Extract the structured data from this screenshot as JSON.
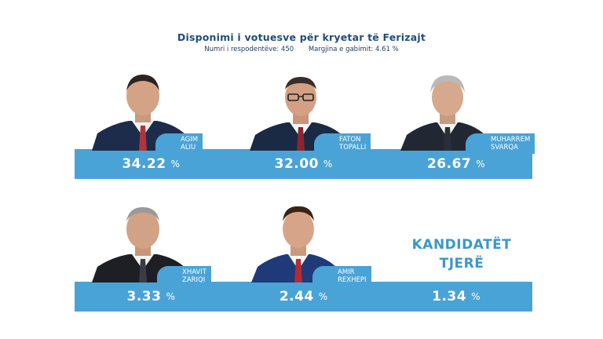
{
  "header": {
    "title": "Disponimi i votuesve për kryetar të Ferizajt",
    "respondents": "Numri i respodentëve: 450",
    "margin": "Margjina e gabimit: 4.61 %"
  },
  "candidates": [
    {
      "first": "AGIM",
      "last": "ALIU",
      "pct": "34.22",
      "sign": "%"
    },
    {
      "first": "FATON",
      "last": "TOPALLI",
      "pct": "32.00",
      "sign": "%"
    },
    {
      "first": "MUHARREM",
      "last": "SVARQA",
      "pct": "26.67",
      "sign": "%"
    },
    {
      "first": "XHAVIT",
      "last": "ZARIQI",
      "pct": "3.33",
      "sign": "%"
    },
    {
      "first": "AMIR",
      "last": "REXHEPI",
      "pct": "2.44",
      "sign": "%"
    }
  ],
  "others": {
    "line1": "KANDIDATËT",
    "line2": "TJERË",
    "pct": "1.34",
    "sign": "%"
  },
  "colors": {
    "accent": "#4aa3d6",
    "title": "#1f4e79"
  },
  "chart_data": {
    "type": "table",
    "title": "Disponimi i votuesve për kryetar të Ferizajt",
    "categories": [
      "AGIM ALIU",
      "FATON TOPALLI",
      "MUHARREM SVARQA",
      "XHAVIT ZARIQI",
      "AMIR REXHEPI",
      "KANDIDATËT TJERË"
    ],
    "values": [
      34.22,
      32.0,
      26.67,
      3.33,
      2.44,
      1.34
    ],
    "unit": "%"
  }
}
